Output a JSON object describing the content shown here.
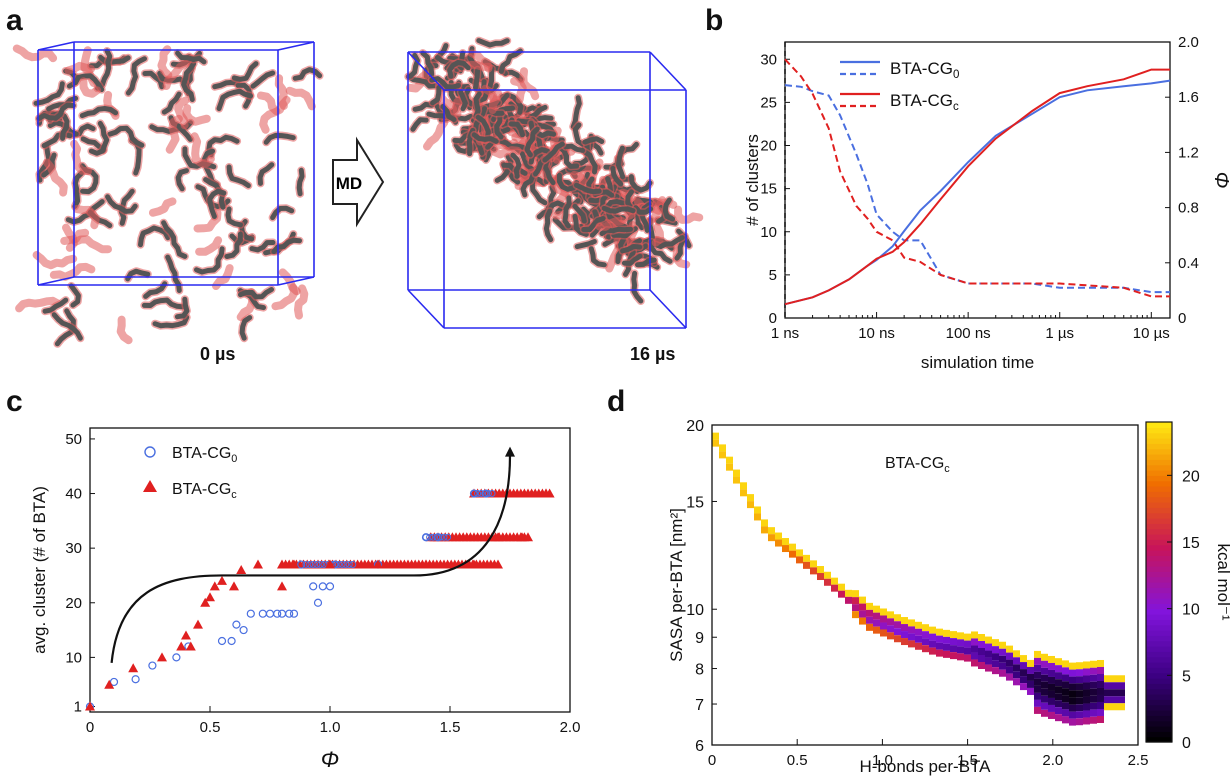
{
  "panels": {
    "a": "a",
    "b": "b",
    "c": "c",
    "d": "d"
  },
  "panel_a": {
    "arrow_label": "MD",
    "caption_left": "0 µs",
    "caption_right": "16 µs",
    "colors": {
      "box": "#2a2af0",
      "bead_dark": "#555555",
      "bead_red": "#e05a5a"
    }
  },
  "chart_data": [
    {
      "id": "b",
      "type": "line",
      "xlabel": "simulation time",
      "ylabel": "# of clusters",
      "y2label": "Φ",
      "x_scale": "log",
      "xlim": [
        1,
        16
      ],
      "ylim": [
        0,
        32
      ],
      "y2lim": [
        0,
        2.0
      ],
      "xticks": [
        "1 ns",
        "10 ns",
        "100 ns",
        "1 µs",
        "10 µs"
      ],
      "yticks": [
        "0",
        "5",
        "10",
        "15",
        "20",
        "25",
        "30"
      ],
      "y2ticks": [
        "0",
        "0.4",
        "0.8",
        "1.2",
        "1.6",
        "2.0"
      ],
      "legend": [
        "BTA-CG0",
        "BTA-CGc"
      ],
      "legend_position": "top-center",
      "series": [
        {
          "name": "BTA-CG0",
          "style": "dashed",
          "axis": "left",
          "color": "#4a6fe0",
          "x_ns": [
            1,
            1.5,
            2,
            3,
            4,
            6,
            8,
            10,
            15,
            20,
            30,
            50,
            100,
            500,
            1000,
            5000,
            10000,
            16000
          ],
          "values": [
            27,
            26.8,
            26.3,
            25.8,
            23.5,
            19,
            15.5,
            12,
            10,
            9,
            9,
            5,
            4,
            4,
            3.5,
            3.5,
            3,
            3
          ]
        },
        {
          "name": "BTA-CGc",
          "style": "dashed",
          "axis": "left",
          "color": "#e02020",
          "x_ns": [
            1,
            1.5,
            2,
            3,
            4,
            6,
            8,
            10,
            15,
            20,
            30,
            50,
            100,
            500,
            1000,
            5000,
            10000,
            16000
          ],
          "values": [
            30,
            28,
            26,
            22,
            17,
            13,
            11.5,
            10,
            9,
            7,
            6.5,
            5,
            4,
            4,
            4,
            3.5,
            2.5,
            2.5
          ]
        },
        {
          "name": "BTA-CG0",
          "style": "solid",
          "axis": "right",
          "color": "#4a6fe0",
          "x_ns": [
            1,
            2,
            3,
            5,
            8,
            10,
            15,
            20,
            30,
            50,
            100,
            200,
            500,
            1000,
            2000,
            5000,
            10000,
            16000
          ],
          "values": [
            0.1,
            0.15,
            0.2,
            0.28,
            0.38,
            0.42,
            0.52,
            0.63,
            0.78,
            0.92,
            1.13,
            1.32,
            1.48,
            1.6,
            1.65,
            1.68,
            1.7,
            1.72
          ]
        },
        {
          "name": "BTA-CGc",
          "style": "solid",
          "axis": "right",
          "color": "#e02020",
          "x_ns": [
            1,
            2,
            3,
            5,
            8,
            10,
            15,
            20,
            30,
            50,
            100,
            200,
            500,
            1000,
            2000,
            5000,
            10000,
            16000
          ],
          "values": [
            0.1,
            0.15,
            0.2,
            0.28,
            0.38,
            0.43,
            0.48,
            0.55,
            0.68,
            0.86,
            1.1,
            1.3,
            1.5,
            1.63,
            1.68,
            1.73,
            1.8,
            1.8
          ]
        }
      ]
    },
    {
      "id": "c",
      "type": "scatter",
      "xlabel": "Φ",
      "ylabel": "avg. cluster (# of BTA)",
      "xlim": [
        0,
        2.0
      ],
      "ylim": [
        0,
        52
      ],
      "xticks": [
        "0",
        "0.5",
        "1.0",
        "1.5",
        "2.0"
      ],
      "yticks": [
        "1",
        "10",
        "20",
        "30",
        "40",
        "50"
      ],
      "legend": [
        "BTA-CG0",
        "BTA-CGc"
      ],
      "legend_position": "top-left",
      "series": [
        {
          "name": "BTA-CG0",
          "marker": "open-circle",
          "color": "#4a6fe0",
          "x": [
            0.0,
            0.1,
            0.19,
            0.26,
            0.36,
            0.41,
            0.55,
            0.59,
            0.61,
            0.64,
            0.67,
            0.72,
            0.75,
            0.78,
            0.8,
            0.83,
            0.85,
            0.88,
            0.93,
            0.95,
            0.97,
            1.0,
            1.02,
            1.2,
            1.4,
            1.45,
            1.6,
            1.65
          ],
          "y": [
            1,
            5.5,
            6,
            8.5,
            10,
            12,
            13,
            13,
            16,
            15,
            18,
            18,
            18,
            18,
            18,
            18,
            18,
            27,
            23,
            20,
            23,
            23,
            27,
            27,
            32,
            32,
            40,
            40
          ]
        },
        {
          "name": "BTA-CGc",
          "marker": "filled-triangle",
          "color": "#e02020",
          "x": [
            0.0,
            0.08,
            0.18,
            0.3,
            0.38,
            0.4,
            0.42,
            0.45,
            0.48,
            0.5,
            0.52,
            0.55,
            0.6,
            0.63,
            0.7,
            0.8,
            0.85,
            1.0,
            1.2,
            1.4,
            1.6,
            1.7,
            1.8,
            1.9
          ],
          "y": [
            1,
            5,
            8,
            10,
            12,
            14,
            12,
            16,
            20,
            21,
            23,
            24,
            23,
            26,
            27,
            23,
            27,
            27,
            27,
            27,
            27,
            32,
            32,
            40
          ]
        }
      ]
    },
    {
      "id": "d",
      "type": "heatmap",
      "title": "BTA-CGc",
      "xlabel": "H-bonds per-BTA",
      "ylabel": "SASA per-BTA [nm²]",
      "colorbar_label": "kcal mol⁻¹",
      "xlim": [
        0,
        2.5
      ],
      "y_scale": "log",
      "ylim": [
        6,
        20
      ],
      "xticks": [
        "0",
        "0.5",
        "1.0",
        "1.5",
        "2.0",
        "2.5"
      ],
      "yticks": [
        "6",
        "7",
        "8",
        "9",
        "10",
        "15",
        "20"
      ],
      "colorbar_ticks": [
        "0",
        "5",
        "10",
        "15",
        "20"
      ],
      "colorbar_range": [
        0,
        24
      ],
      "ridge": {
        "x": [
          0.0,
          0.15,
          0.3,
          0.5,
          0.7,
          0.9,
          1.1,
          1.3,
          1.5,
          1.7,
          1.9,
          2.1,
          2.3
        ],
        "y": [
          19,
          16,
          13.5,
          12.2,
          11,
          9.8,
          9.3,
          8.9,
          8.7,
          8.3,
          7.6,
          7.3,
          7.4
        ],
        "value": [
          22,
          22,
          21,
          18,
          15,
          11,
          9,
          7,
          6,
          4,
          2,
          0.5,
          3
        ]
      }
    }
  ]
}
